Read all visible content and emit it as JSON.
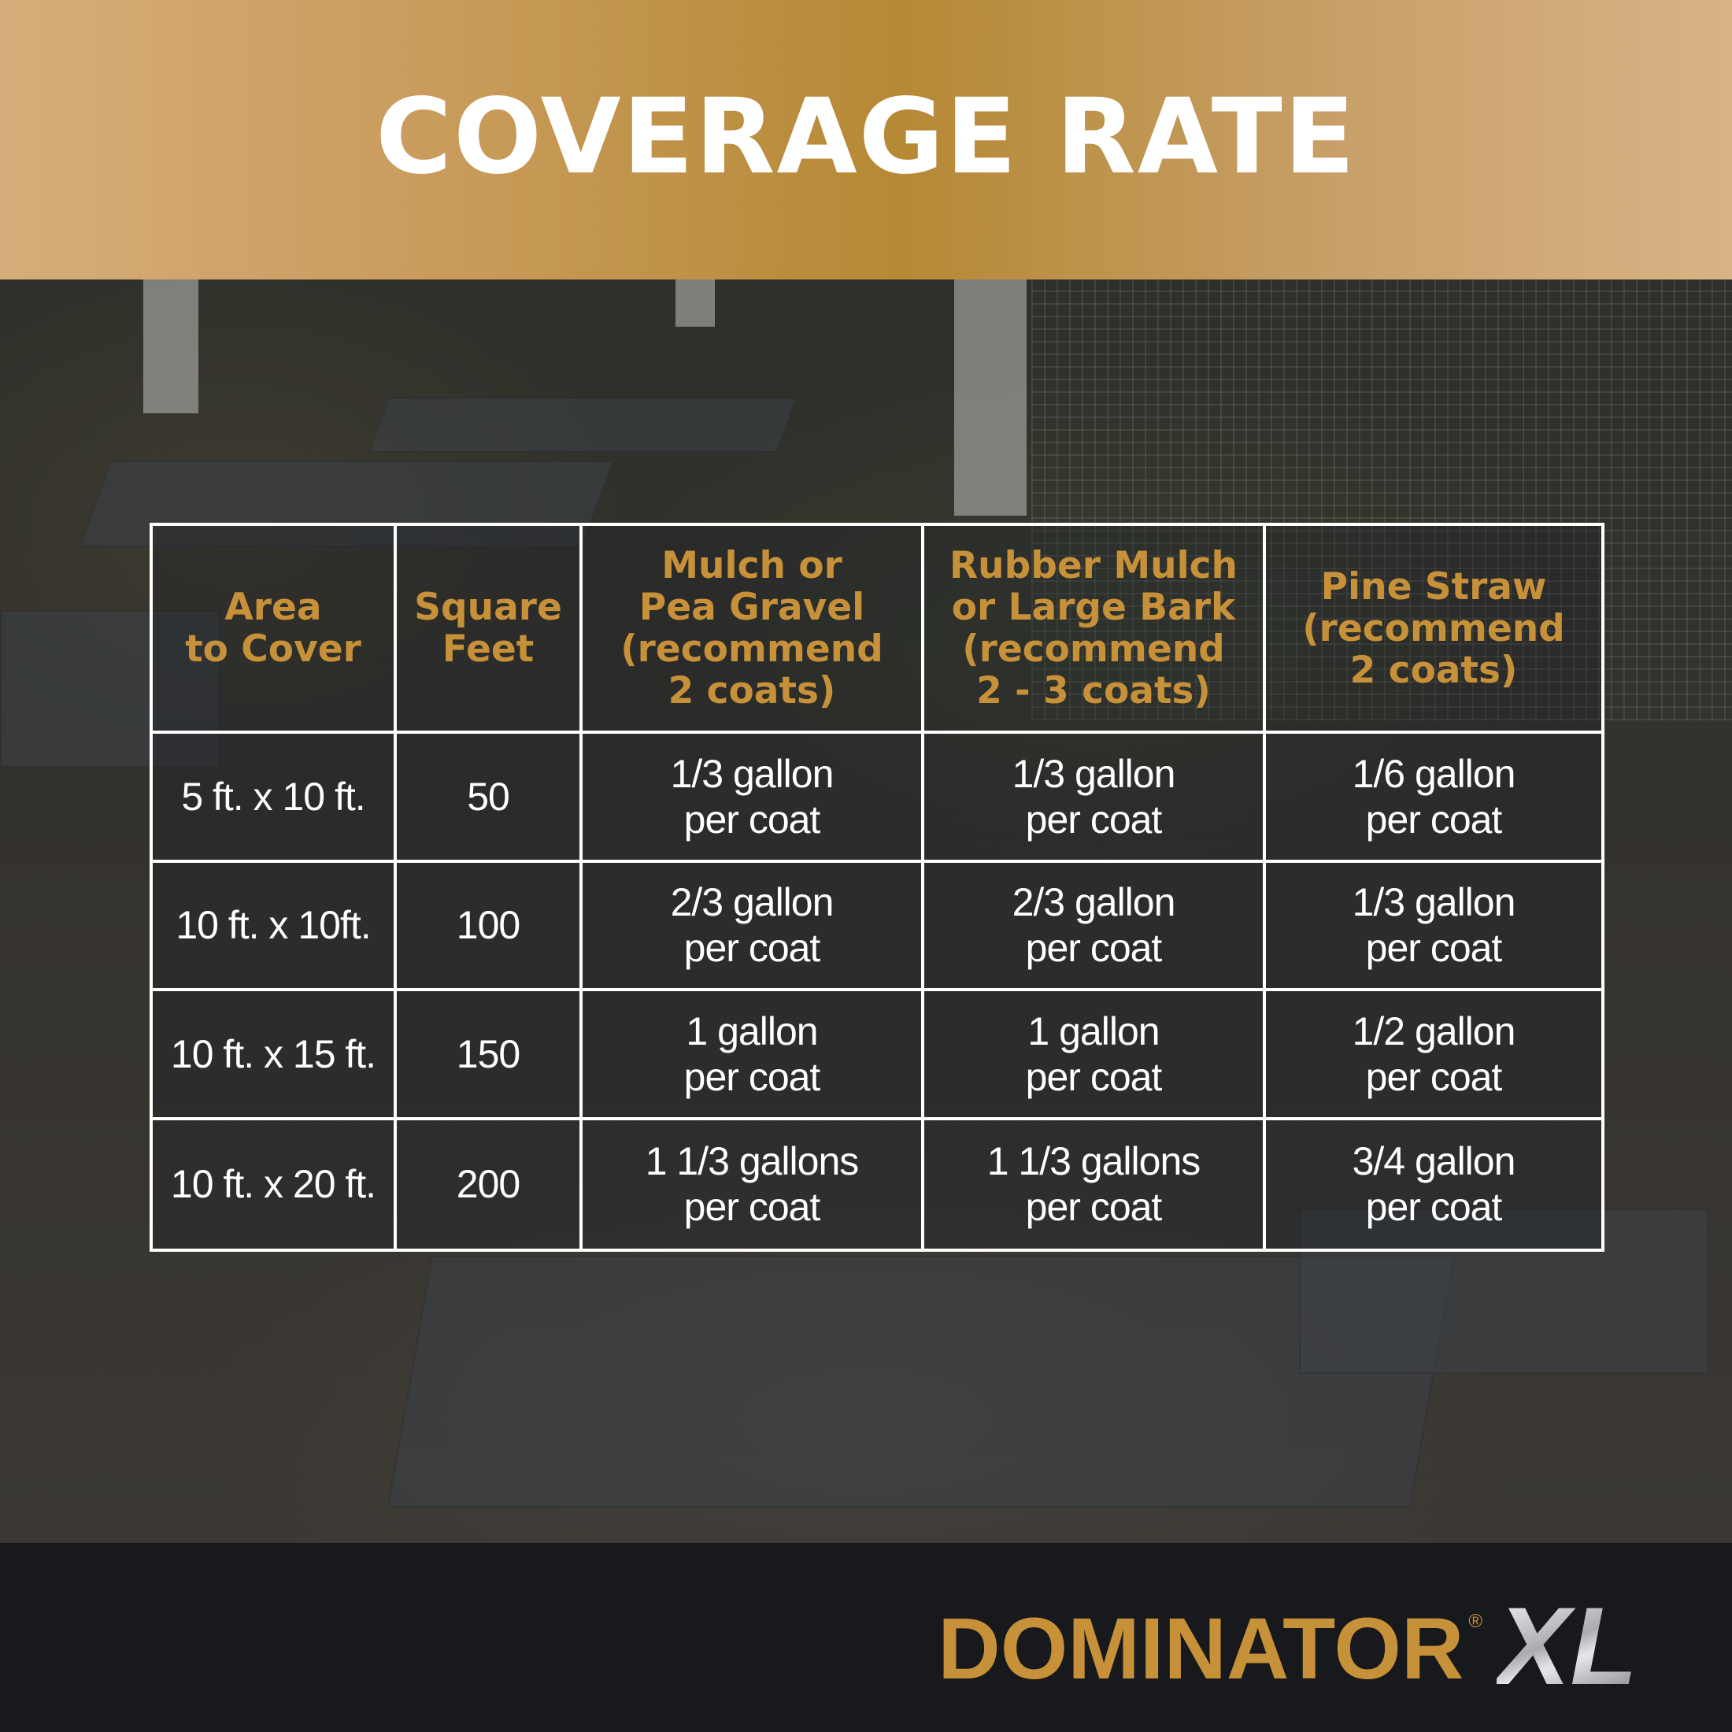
{
  "header": {
    "title": "COVERAGE RATE"
  },
  "table": {
    "headers": [
      "Area\nto Cover",
      "Square\nFeet",
      "Mulch or\nPea Gravel\n(recommend\n2 coats)",
      "Rubber Mulch\nor Large Bark\n(recommend\n2 - 3 coats)",
      "Pine Straw\n(recommend\n2 coats)"
    ],
    "rows": [
      [
        "5 ft. x 10 ft.",
        "50",
        "1/3 gallon\nper coat",
        "1/3 gallon\nper coat",
        "1/6 gallon\nper coat"
      ],
      [
        "10 ft. x 10ft.",
        "100",
        "2/3 gallon\nper coat",
        "2/3 gallon\nper coat",
        "1/3 gallon\nper coat"
      ],
      [
        "10 ft. x 15 ft.",
        "150",
        "1 gallon\nper coat",
        "1 gallon\nper coat",
        "1/2 gallon\nper coat"
      ],
      [
        "10 ft. x 20 ft.",
        "200",
        "1 1/3 gallons\nper coat",
        "1 1/3 gallons\nper coat",
        "3/4 gallon\nper coat"
      ]
    ]
  },
  "logo": {
    "word": "DOMINATOR",
    "registered": "®",
    "suffix": "XL"
  },
  "colors": {
    "gold": "#c7913a",
    "header_band": "#b68935",
    "footer": "#17191c"
  }
}
